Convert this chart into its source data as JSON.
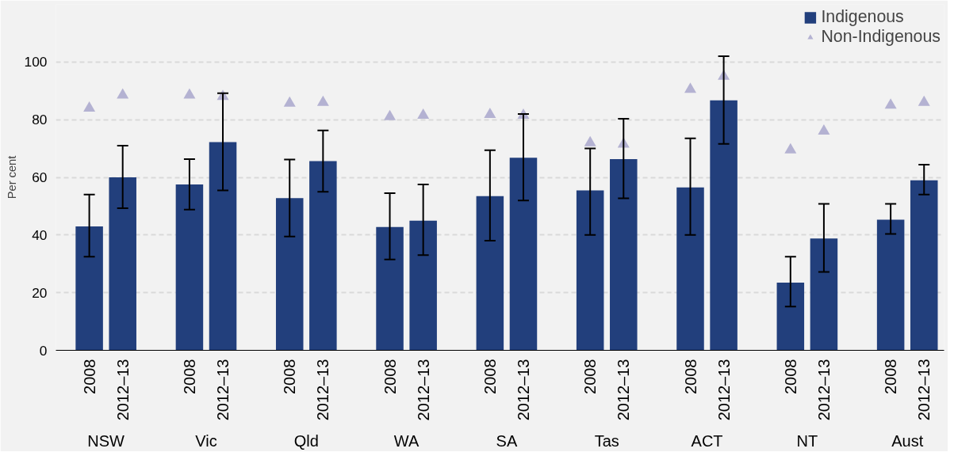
{
  "chart_data": {
    "type": "bar",
    "ylabel": "Per cent",
    "categories": [
      "2008",
      "2012–13",
      "2008",
      "2012–13",
      "2008",
      "2012–13",
      "2008",
      "2012–13",
      "2008",
      "2012–13",
      "2008",
      "2012–13",
      "2008",
      "2012–13",
      "2008",
      "2012–13",
      "2008",
      "2012–13"
    ],
    "annotations": [
      "NSW",
      "Vic",
      "Qld",
      "WA",
      "SA",
      "Tas",
      "ACT",
      "NT",
      "Aust"
    ],
    "series": [
      {
        "name": "Indigenous",
        "color": "#223f7c",
        "values": [
          43,
          60,
          57.5,
          72.2,
          52.8,
          65.6,
          42.8,
          45,
          53.5,
          66.8,
          55.5,
          66.3,
          56.5,
          86.7,
          23.5,
          38.8,
          45.3,
          59
        ],
        "errors": [
          [
            32.5,
            54
          ],
          [
            49.3,
            71
          ],
          [
            48.8,
            66.3
          ],
          [
            55.5,
            89.2
          ],
          [
            39.5,
            66.2
          ],
          [
            55,
            76.3
          ],
          [
            31.5,
            54.5
          ],
          [
            33,
            57.5
          ],
          [
            38,
            69.4
          ],
          [
            52,
            82
          ],
          [
            40,
            70
          ],
          [
            52.7,
            80.3
          ],
          [
            40,
            73.5
          ],
          [
            71.6,
            102
          ],
          [
            15.2,
            32.5
          ],
          [
            27.2,
            50.8
          ],
          [
            40.4,
            50.8
          ],
          [
            54,
            64.4
          ]
        ]
      },
      {
        "name": "Non-Indigenous",
        "type": "scatter",
        "marker": "triangle",
        "color": "#b4b2d2",
        "values": [
          84,
          88.5,
          88.5,
          88,
          85.7,
          86,
          81,
          81.5,
          81.8,
          81.5,
          72,
          71.5,
          90.5,
          95,
          69.5,
          76,
          85,
          86
        ]
      }
    ],
    "ylim": [
      0,
      120
    ],
    "yticks": [
      0,
      20,
      40,
      60,
      80,
      100
    ],
    "grid": "y",
    "legend": "top right"
  }
}
